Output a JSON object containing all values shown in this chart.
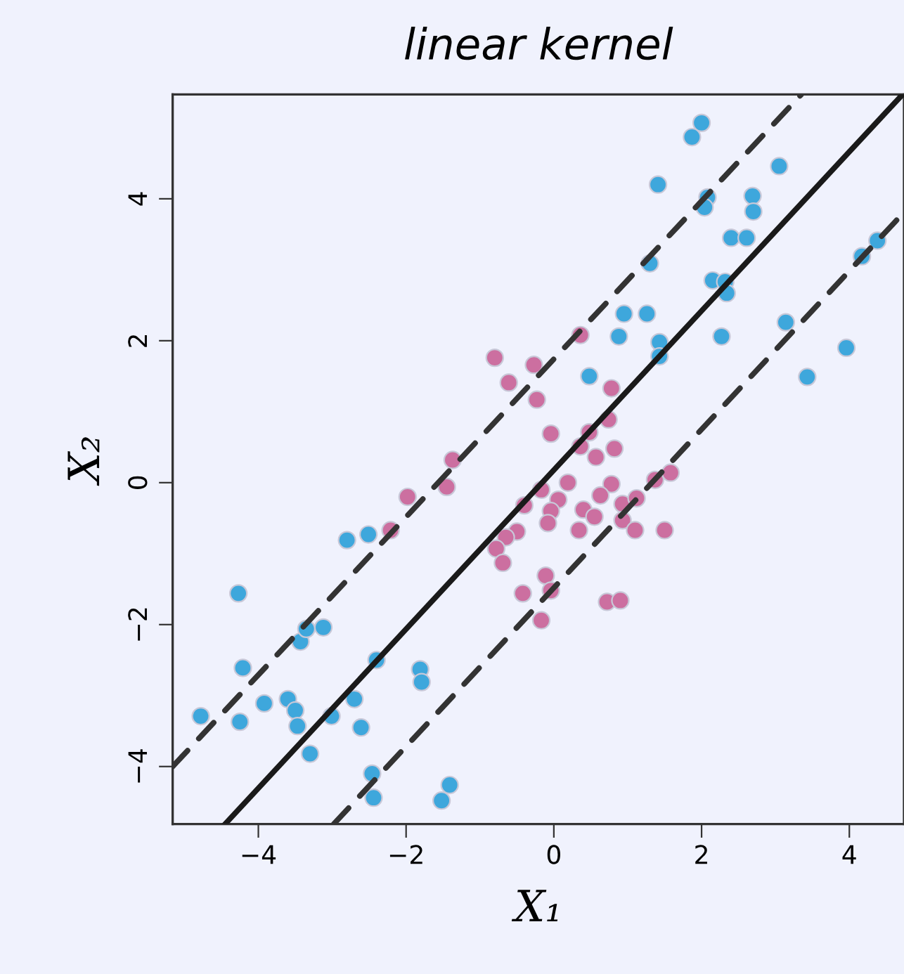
{
  "chart_data": {
    "type": "scatter",
    "title": "linear kernel",
    "xlabel": "X₁",
    "ylabel": "X₂",
    "xlim": [
      -5.16,
      4.74
    ],
    "ylim": [
      -4.81,
      5.47
    ],
    "xticks": [
      {
        "value": -4,
        "label": "−4"
      },
      {
        "value": -2,
        "label": "−2"
      },
      0,
      2,
      4
    ],
    "yticks": [
      {
        "value": -4,
        "label": "−4"
      },
      {
        "value": -2,
        "label": "−2"
      },
      0,
      2,
      4
    ],
    "grid": false,
    "legend": false,
    "marker": "circle",
    "series": [
      {
        "color": "#3ea7dc",
        "x": [
          -4.78,
          -4.27,
          -4.21,
          -4.25,
          -3.92,
          -3.6,
          -3.5,
          -3.47,
          -3.43,
          -3.35,
          -3.12,
          -3.3,
          -3.01,
          -2.8,
          -2.51,
          -2.7,
          -2.61,
          -2.4,
          -2.46,
          -2.44,
          -1.81,
          -1.79,
          -1.52,
          -1.41,
          2.0,
          1.87,
          3.05,
          1.41,
          2.69,
          2.7,
          2.08,
          2.04,
          2.4,
          2.61,
          1.3,
          4.38,
          4.17,
          2.15,
          2.32,
          2.34,
          0.95,
          1.26,
          3.14,
          0.88,
          2.27,
          1.43,
          1.43,
          3.96,
          0.48,
          3.43
        ],
        "values": [
          -3.29,
          -1.56,
          -2.61,
          -3.37,
          -3.11,
          -3.05,
          -3.21,
          -3.43,
          -2.24,
          -2.06,
          -2.04,
          -3.82,
          -3.29,
          -0.81,
          -0.73,
          -3.05,
          -3.45,
          -2.5,
          -4.1,
          -4.44,
          -2.63,
          -2.81,
          -4.48,
          -4.26,
          5.07,
          4.87,
          4.46,
          4.2,
          4.04,
          3.82,
          4.02,
          3.88,
          3.45,
          3.45,
          3.09,
          3.41,
          3.19,
          2.85,
          2.83,
          2.67,
          2.38,
          2.38,
          2.26,
          2.06,
          2.06,
          1.98,
          1.78,
          1.9,
          1.5,
          1.49
        ]
      },
      {
        "color": "#cc6fa0",
        "x": [
          0.36,
          -0.27,
          -0.23,
          0.78,
          0.74,
          0.48,
          -0.04,
          0.82,
          0.57,
          0.36,
          -0.8,
          -0.61,
          -1.37,
          -1.45,
          -1.98,
          -2.21,
          -0.4,
          -0.5,
          -0.65,
          -0.78,
          -0.69,
          -0.42,
          -0.17,
          0.19,
          0.78,
          0.63,
          0.06,
          -0.04,
          -0.08,
          0.4,
          0.55,
          0.34,
          0.93,
          1.12,
          0.93,
          1.1,
          1.37,
          1.58,
          1.5,
          -0.11,
          -0.04,
          0.72,
          0.9,
          -0.17
        ],
        "values": [
          2.08,
          1.66,
          1.17,
          1.33,
          0.89,
          0.71,
          0.69,
          0.48,
          0.36,
          0.51,
          1.76,
          1.41,
          0.32,
          -0.06,
          -0.2,
          -0.67,
          -0.32,
          -0.69,
          -0.77,
          -0.93,
          -1.13,
          -1.56,
          -0.1,
          0.0,
          -0.02,
          -0.18,
          -0.24,
          -0.4,
          -0.57,
          -0.38,
          -0.48,
          -0.67,
          -0.3,
          -0.22,
          -0.53,
          -0.67,
          0.04,
          0.14,
          -0.67,
          -1.31,
          -1.52,
          -1.68,
          -1.66,
          -1.94
        ]
      },
      {
        "type": "line",
        "color": "#1a1a1a",
        "line_style": "solid",
        "marker": "none",
        "x": [
          -4.45,
          4.72
        ],
        "values": [
          -4.81,
          5.47
        ]
      },
      {
        "type": "line",
        "color": "#333333",
        "line_style": "dashed",
        "marker": "none",
        "x": [
          -5.16,
          3.35
        ],
        "values": [
          -4.0,
          5.47
        ]
      },
      {
        "type": "line",
        "color": "#333333",
        "line_style": "dashed",
        "marker": "none",
        "x": [
          -2.98,
          4.74
        ],
        "values": [
          -4.81,
          3.81
        ]
      }
    ]
  }
}
